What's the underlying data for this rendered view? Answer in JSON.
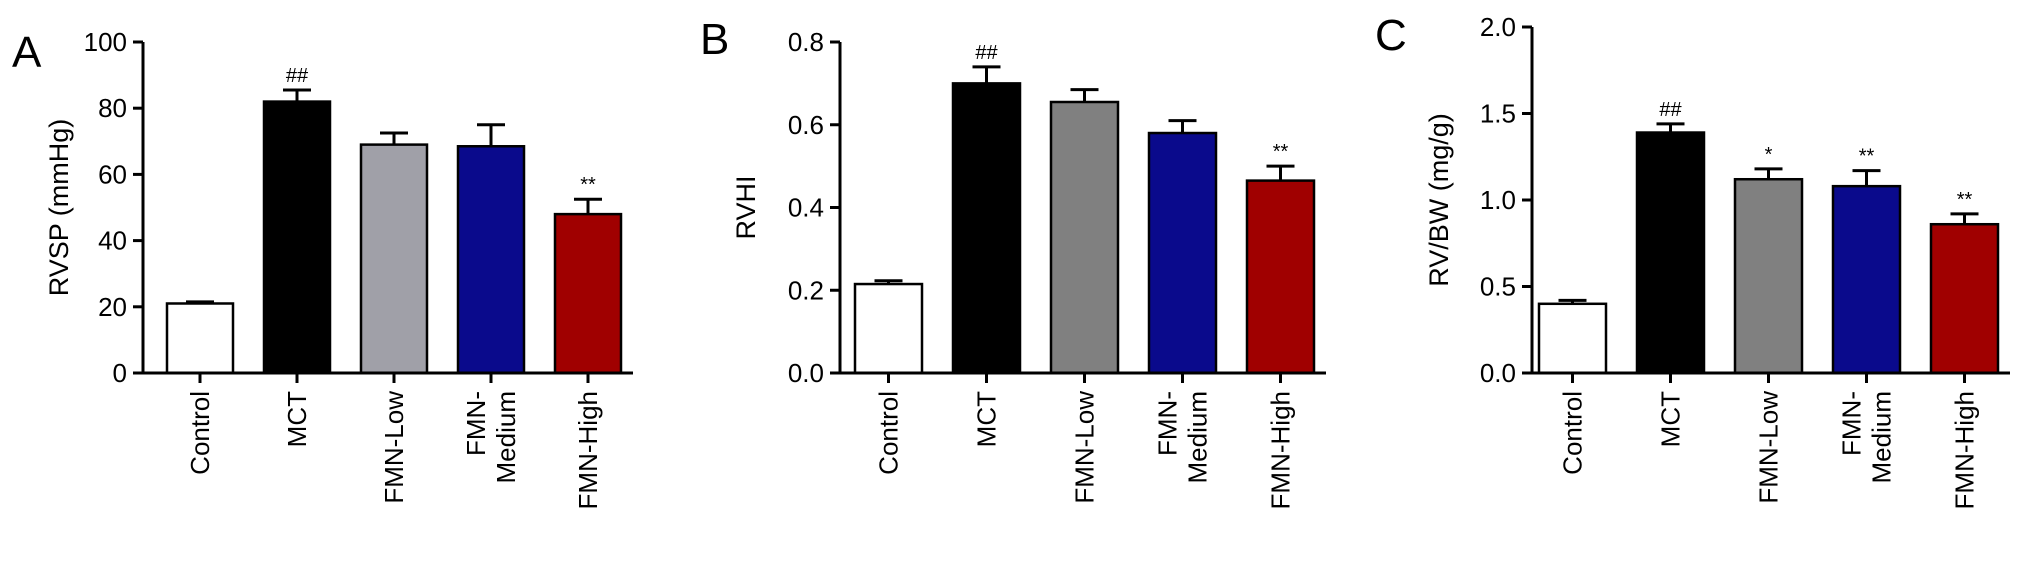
{
  "chart_data": [
    {
      "type": "bar",
      "panel_label": "A",
      "ylabel": "RVSP (mmHg)",
      "ylim": [
        0,
        100
      ],
      "yticks": [
        0,
        20,
        40,
        60,
        80,
        100
      ],
      "ytick_labels": [
        "0",
        "20",
        "40",
        "60",
        "80",
        "100"
      ],
      "categories": [
        "Control",
        "MCT",
        "FMN-Low",
        "FMN-\nMedium",
        "FMN-High"
      ],
      "values": [
        21,
        82,
        69,
        68.5,
        48
      ],
      "errors": [
        0.5,
        3.5,
        3.5,
        6.5,
        4.5
      ],
      "annotations": [
        "",
        "##",
        "",
        "",
        "**"
      ],
      "colors": [
        "#ffffff",
        "#000000",
        "#a0a0a8",
        "#0a0a8c",
        "#a00000"
      ]
    },
    {
      "type": "bar",
      "panel_label": "B",
      "ylabel": "RVHI",
      "ylim": [
        0,
        0.8
      ],
      "yticks": [
        0,
        0.2,
        0.4,
        0.6,
        0.8
      ],
      "ytick_labels": [
        "0.0",
        "0.2",
        "0.4",
        "0.6",
        "0.8"
      ],
      "categories": [
        "Control",
        "MCT",
        "FMN-Low",
        "FMN-\nMedium",
        "FMN-High"
      ],
      "values": [
        0.215,
        0.7,
        0.655,
        0.58,
        0.465
      ],
      "errors": [
        0.008,
        0.04,
        0.03,
        0.03,
        0.035
      ],
      "annotations": [
        "",
        "##",
        "",
        "",
        "**"
      ],
      "colors": [
        "#ffffff",
        "#000000",
        "#808080",
        "#0a0a8c",
        "#a00000"
      ]
    },
    {
      "type": "bar",
      "panel_label": "C",
      "ylabel": "RV/BW (mg/g)",
      "ylim": [
        0,
        2.0
      ],
      "yticks": [
        0,
        0.5,
        1.0,
        1.5,
        2.0
      ],
      "ytick_labels": [
        "0.0",
        "0.5",
        "1.0",
        "1.5",
        "2.0"
      ],
      "categories": [
        "Control",
        "MCT",
        "FMN-Low",
        "FMN-\nMedium",
        "FMN-High"
      ],
      "values": [
        0.4,
        1.39,
        1.12,
        1.08,
        0.86
      ],
      "errors": [
        0.02,
        0.05,
        0.06,
        0.09,
        0.06
      ],
      "annotations": [
        "",
        "##",
        "*",
        "**",
        "**"
      ],
      "colors": [
        "#ffffff",
        "#000000",
        "#808080",
        "#0a0a8c",
        "#a00000"
      ]
    }
  ]
}
